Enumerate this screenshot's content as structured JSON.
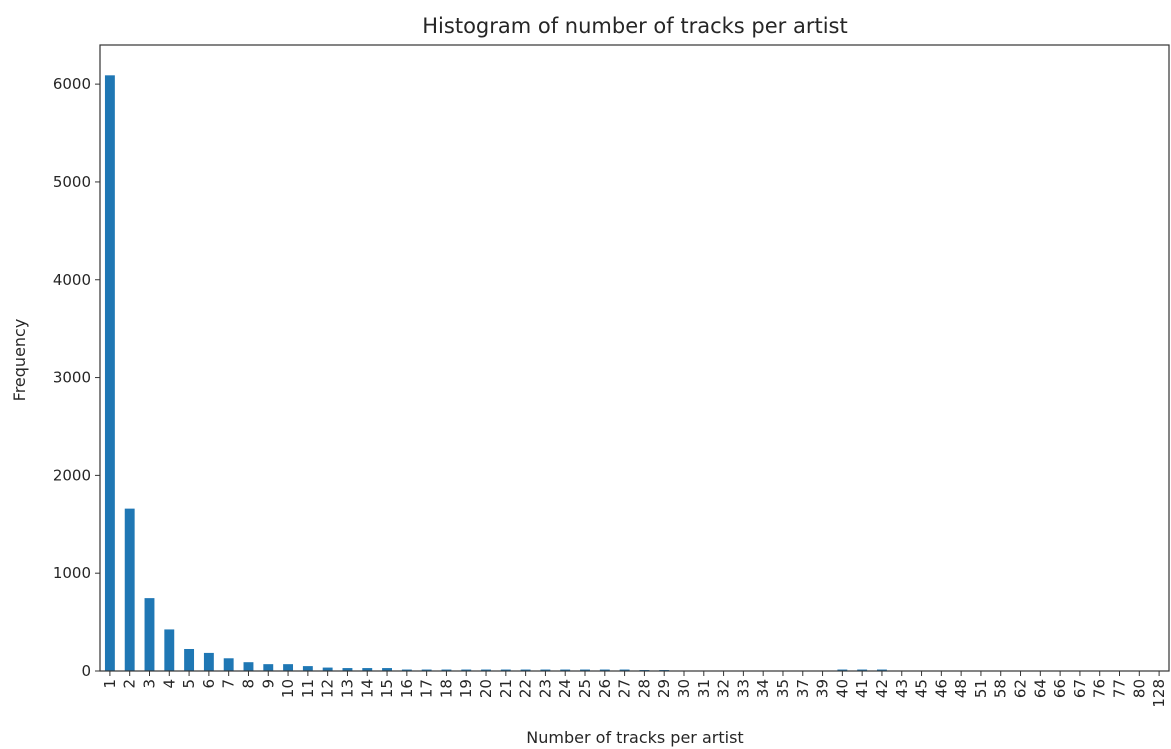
{
  "chart_data": {
    "type": "bar",
    "title": "Histogram of number of tracks per artist",
    "xlabel": "Number of tracks per artist",
    "ylabel": "Frequency",
    "ylim": [
      0,
      6400
    ],
    "yticks": [
      0,
      1000,
      2000,
      3000,
      4000,
      5000,
      6000
    ],
    "grid": false,
    "legend": "none",
    "bar_color": "#1f77b4",
    "categories": [
      "1",
      "2",
      "3",
      "4",
      "5",
      "6",
      "7",
      "8",
      "9",
      "10",
      "11",
      "12",
      "13",
      "14",
      "15",
      "16",
      "17",
      "18",
      "19",
      "20",
      "21",
      "22",
      "23",
      "24",
      "25",
      "26",
      "27",
      "28",
      "29",
      "30",
      "31",
      "32",
      "33",
      "34",
      "35",
      "37",
      "39",
      "40",
      "41",
      "42",
      "43",
      "45",
      "46",
      "48",
      "51",
      "58",
      "62",
      "64",
      "66",
      "67",
      "76",
      "77",
      "80",
      "128"
    ],
    "values": [
      6090,
      1660,
      745,
      425,
      225,
      185,
      130,
      90,
      70,
      70,
      50,
      35,
      30,
      30,
      30,
      15,
      15,
      15,
      15,
      15,
      15,
      15,
      15,
      15,
      15,
      15,
      15,
      10,
      10,
      5,
      5,
      5,
      5,
      5,
      5,
      5,
      5,
      15,
      15,
      15,
      5,
      5,
      5,
      5,
      5,
      5,
      5,
      5,
      5,
      5,
      5,
      5,
      5,
      5
    ]
  }
}
